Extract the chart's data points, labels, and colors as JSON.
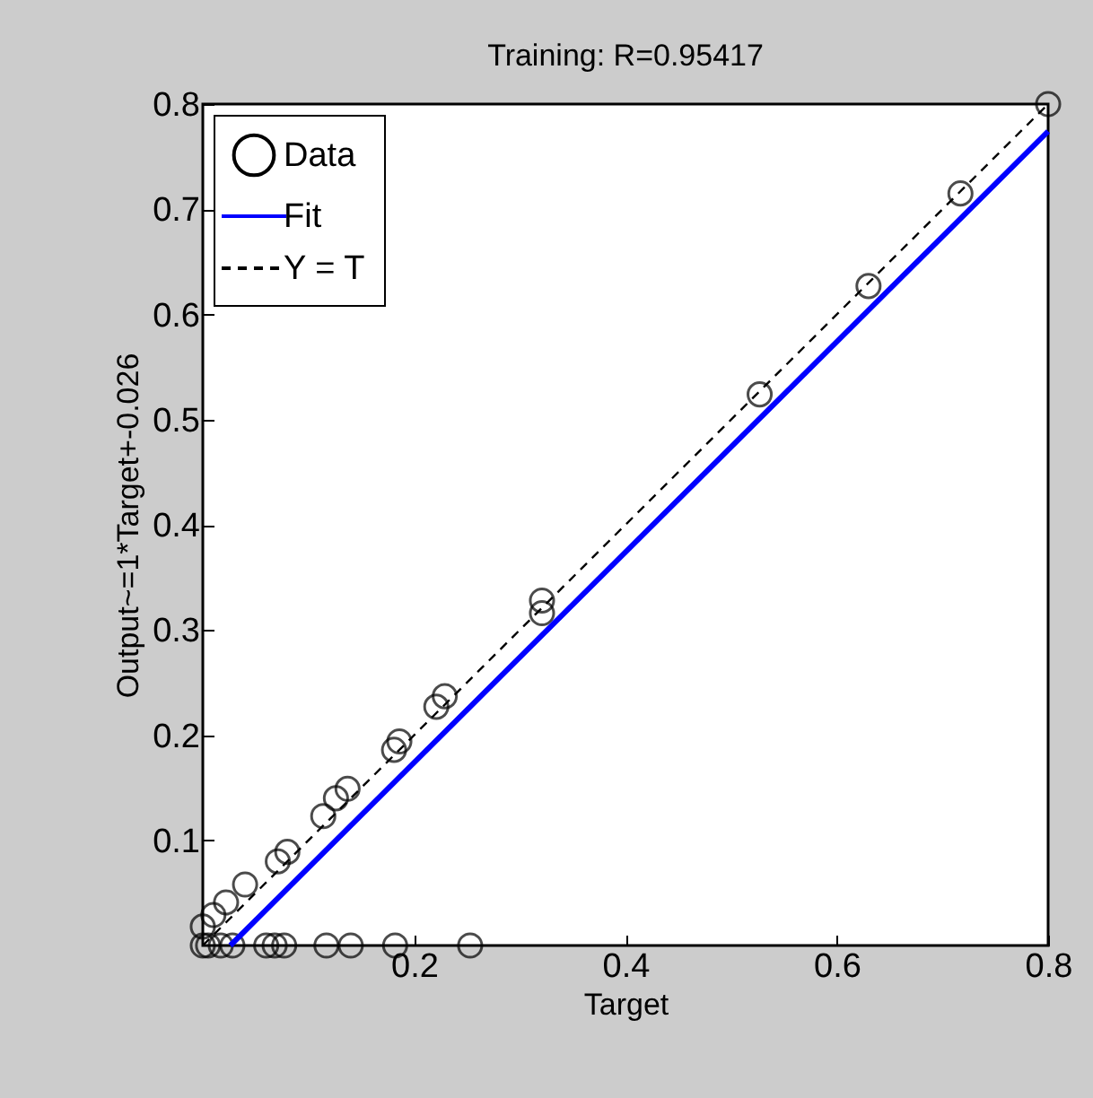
{
  "chart_data": {
    "type": "scatter",
    "title": "Training: R=0.95417",
    "xlabel": "Target",
    "ylabel": "Output~=1*Target+-0.026",
    "xlim": [
      0,
      0.8
    ],
    "ylim": [
      0,
      0.8
    ],
    "xticks": [
      0.2,
      0.4,
      0.6,
      0.8
    ],
    "yticks": [
      0.1,
      0.2,
      0.3,
      0.4,
      0.5,
      0.6,
      0.7,
      0.8
    ],
    "grid": false,
    "legend": "top left",
    "series": [
      {
        "name": "Data",
        "marker": "circle",
        "color": "#000000",
        "x": [
          0,
          0.005,
          0.017,
          0.028,
          0.06,
          0.068,
          0.077,
          0.117,
          0.14,
          0.182,
          0.253,
          0,
          0.01,
          0.022,
          0.04,
          0.071,
          0.08,
          0.114,
          0.126,
          0.137,
          0.181,
          0.186,
          0.221,
          0.229,
          0.321,
          0.321,
          0.527,
          0.63,
          0.717,
          0.8
        ],
        "values": [
          0,
          0,
          0,
          0,
          0,
          0,
          0,
          0,
          0,
          0,
          0,
          0.018,
          0.029,
          0.041,
          0.058,
          0.08,
          0.089,
          0.123,
          0.14,
          0.149,
          0.186,
          0.194,
          0.227,
          0.237,
          0.316,
          0.328,
          0.524,
          0.627,
          0.715,
          0.8
        ]
      },
      {
        "name": "Fit",
        "type": "line",
        "line_style": "solid",
        "color": "#0000ff",
        "x": [
          0.026,
          0.8
        ],
        "values": [
          0,
          0.774
        ]
      },
      {
        "name": "Y = T",
        "type": "line",
        "line_style": "dashed",
        "color": "#000000",
        "x": [
          0,
          0.8
        ],
        "values": [
          0,
          0.8
        ]
      }
    ]
  }
}
